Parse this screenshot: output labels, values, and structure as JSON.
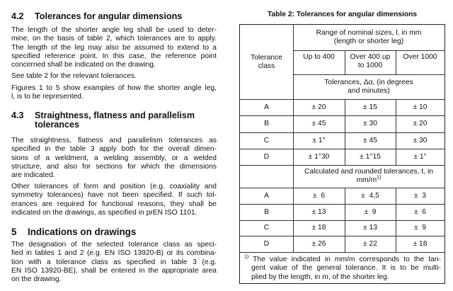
{
  "section_4_2": {
    "number": "4.2",
    "title": "Tolerances for angular dimensions",
    "para1": [
      "The length of the shorter angle leg shall be used to deter-",
      "mine, on the basis of table 2, which tolerances are to apply.",
      "The length of the leg may also be assumed to extend to a",
      "specified reference point. In this case, the reference point",
      "concerned shall be indicated on the drawing."
    ],
    "para2": [
      "See table 2 for the relevant tolerances."
    ],
    "para3": [
      "Figures 1 to 5 show examples of how the shorter angle leg,",
      "l, is to be represented."
    ]
  },
  "section_4_3": {
    "number": "4.3",
    "title_lines": [
      "Straightness, flatness and parallelism",
      "tolerances"
    ],
    "para1": [
      "The straightness, flatness and parallelism tolerances as",
      "specified in the table 3 apply both for the overall dimen-",
      "sions of a weldment, a welding assembly, or a welded",
      "structure, and also for sections for which the dimensions",
      "are indicated."
    ],
    "para2": [
      "Other tolerances of form and position (e.g. coaxiality and",
      "symmetry tolerances) have not been specified. If such tol-",
      "erances are required for functional reasons, they shall be",
      "indicated on the drawings, as specified in prEN ISO 1101."
    ]
  },
  "section_5": {
    "number": "5",
    "title": "Indications on drawings",
    "para1": [
      "The designation of the selected tolerance class as speci-",
      "fied in tables 1 and 2 (e.g. EN ISO 13920-B) or its combina-",
      "tion with a tolerance class as specified in table 3 (e.g.",
      "EN ISO 13920-BE), shall be entered in the appropriate area",
      "on the drawing."
    ]
  },
  "table": {
    "caption": "Table 2: Tolerances for angular dimensions",
    "class_header": "Tolerance class",
    "range_header": "Range of nominal sizes, l, in mm (length or shorter leg)",
    "columns": [
      "Up to 400",
      "Over 400 up to 1000",
      "Over 1000"
    ],
    "deg_header": "Tolerances, Δα, (in degrees and minutes)",
    "deg_rows": [
      {
        "cls": "A",
        "v": [
          "± 20",
          "± 15",
          "± 10"
        ]
      },
      {
        "cls": "B",
        "v": [
          "± 45",
          "± 30",
          "± 20"
        ]
      },
      {
        "cls": "C",
        "v": [
          "± 1°",
          "± 45",
          "± 30"
        ]
      },
      {
        "cls": "D",
        "v": [
          "± 1°30",
          "± 1°15",
          "± 1°"
        ]
      }
    ],
    "mm_header": "Calculated and rounded tolerances, t, in mm/m",
    "mm_header_sup": "1)",
    "mm_rows": [
      {
        "cls": "A",
        "v": [
          "±  6",
          "±  4,5",
          "±  3"
        ]
      },
      {
        "cls": "B",
        "v": [
          "± 13",
          "±  9",
          "±  6"
        ]
      },
      {
        "cls": "C",
        "v": [
          "± 18",
          "± 13",
          "±  9"
        ]
      },
      {
        "cls": "D",
        "v": [
          "± 26",
          "± 22",
          "± 18"
        ]
      }
    ],
    "footnote_mark": "1)",
    "footnote": [
      "The value indicated in mm/m corresponds to the tan-",
      "gent value of the general tolerance. It is to be multi-",
      "plied by the length, in m, of the shorter leg."
    ]
  }
}
